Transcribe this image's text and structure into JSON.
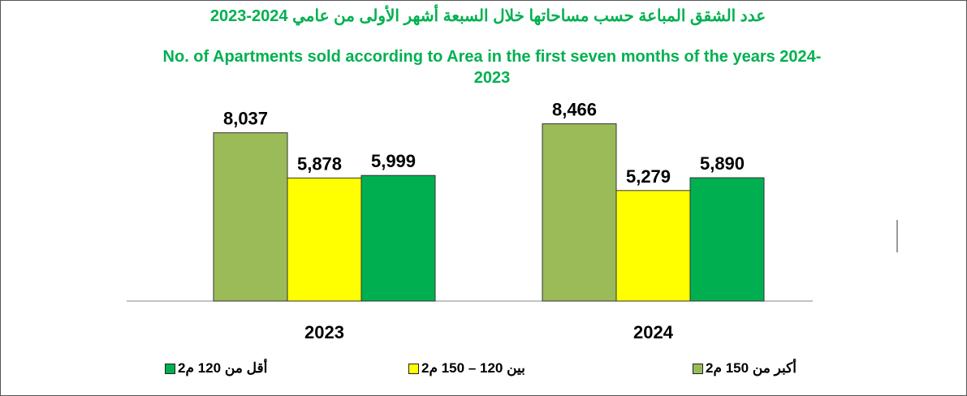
{
  "chart_data": {
    "type": "bar",
    "title": "عدد الشقق المباعة حسب مساحاتها خلال السبعة أشهر الأولى من عامي 2024-2023",
    "subtitle": "No. of Apartments sold according to Area in the first seven months of the years 2024-2023",
    "categories": [
      "2023",
      "2024"
    ],
    "series": [
      {
        "name": "أكبر من 150 م2",
        "color": "#9bbb59",
        "values": [
          8037,
          8466
        ],
        "value_labels": [
          "8,037",
          "8,466"
        ]
      },
      {
        "name": "بين 120 – 150 م2",
        "color": "#ffff00",
        "values": [
          5878,
          5279
        ],
        "value_labels": [
          "5,878",
          "5,279"
        ]
      },
      {
        "name": "أقل من 120 م2",
        "color": "#00b050",
        "values": [
          5999,
          5890
        ],
        "value_labels": [
          "5,999",
          "5,890"
        ]
      }
    ],
    "ylim": [
      0,
      10000
    ]
  }
}
